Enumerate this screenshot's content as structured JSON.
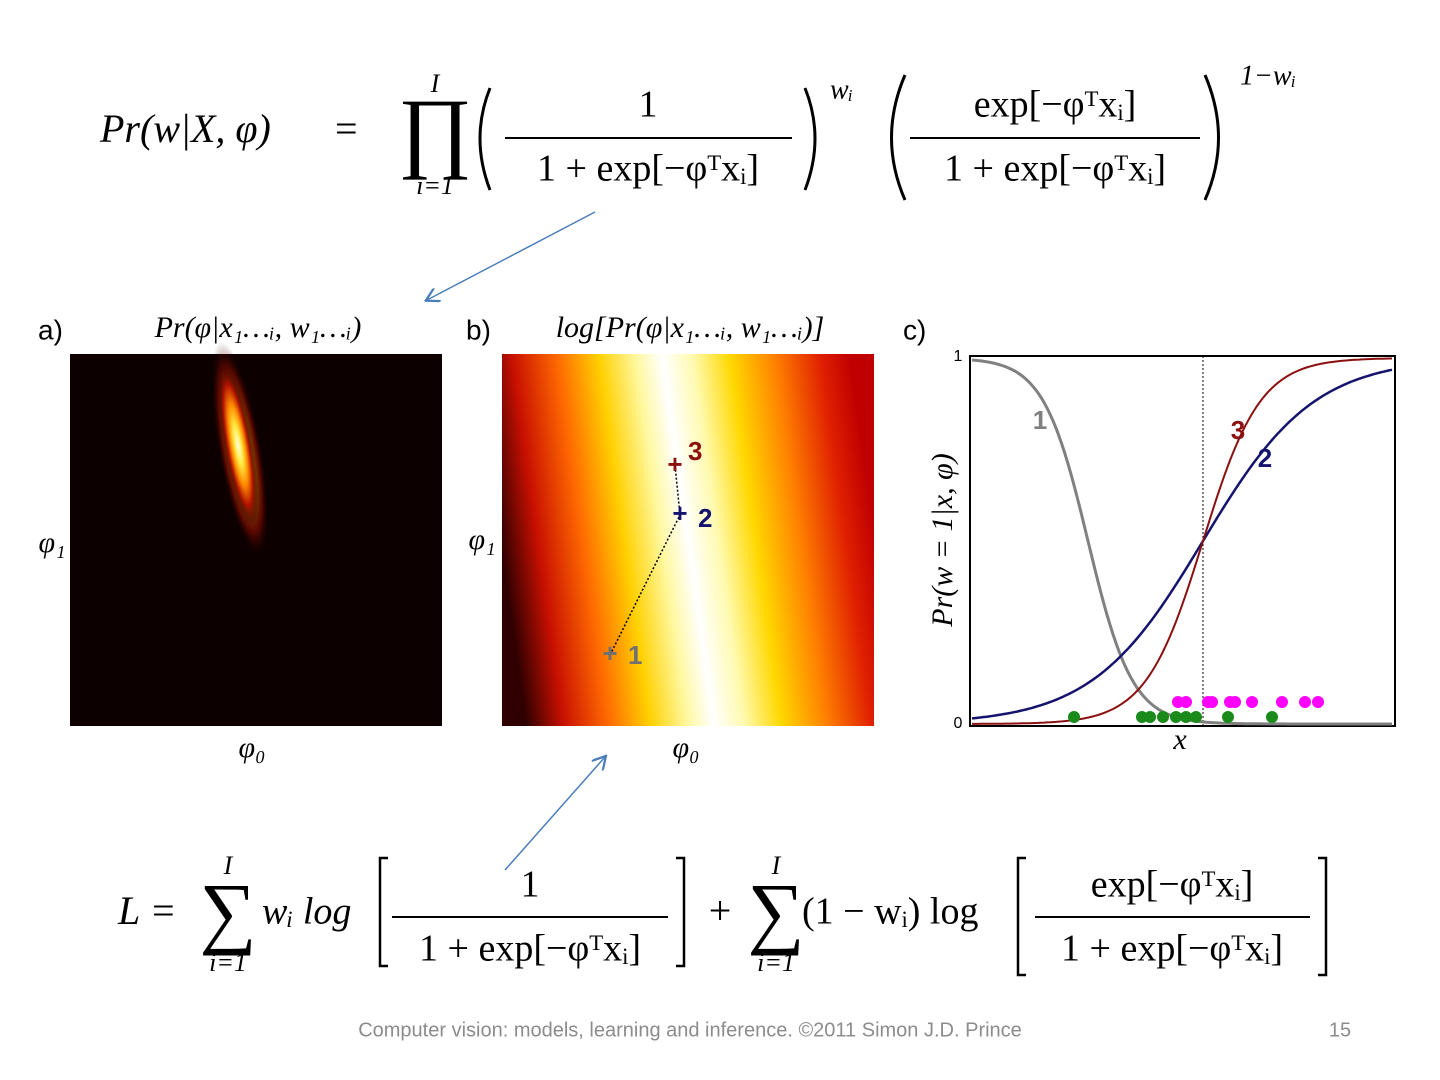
{
  "equations": {
    "likelihood": {
      "lhs": "Pr(w|X, φ)",
      "eq": "=",
      "operator": "∏",
      "upper": "I",
      "lower": "i=1",
      "num1": "1",
      "den1": "1 + exp[−φᵀxᵢ]",
      "exp1": "wᵢ",
      "num2": "exp[−φᵀxᵢ]",
      "den2": "1 + exp[−φᵀxᵢ]",
      "exp2": "1−wᵢ"
    },
    "log_likelihood": {
      "lhs": "L =",
      "operator1": "∑",
      "upper1": "I",
      "lower1": "i=1",
      "term1": "wᵢ log",
      "num1": "1",
      "den1": "1 + exp[−φᵀxᵢ]",
      "plus": "+",
      "operator2": "∑",
      "upper2": "I",
      "lower2": "i=1",
      "term2": "(1 − wᵢ) log",
      "num2": "exp[−φᵀxᵢ]",
      "den2": "1 + exp[−φᵀxᵢ]"
    }
  },
  "panels": [
    {
      "label": "a)",
      "title": "Pr(φ|x₁…ᵢ, w₁…ᵢ)",
      "ylabel": "φ₁",
      "xlabel": "φ₀"
    },
    {
      "label": "b)",
      "title": "log[Pr(φ|x₁…ᵢ, w₁…ᵢ)]",
      "ylabel": "φ₁",
      "xlabel": "φ₀",
      "markers": [
        "1",
        "2",
        "3"
      ]
    },
    {
      "label": "c)",
      "ylabel": "Pr(w = 1|x, φ)",
      "xlabel": "x",
      "yticks": [
        1,
        0
      ],
      "curve_labels": [
        "1",
        "2",
        "3"
      ]
    }
  ],
  "footer": {
    "text": "Computer vision: models, learning and inference.  ©2011 Simon J.D. Prince",
    "page": "15"
  }
}
